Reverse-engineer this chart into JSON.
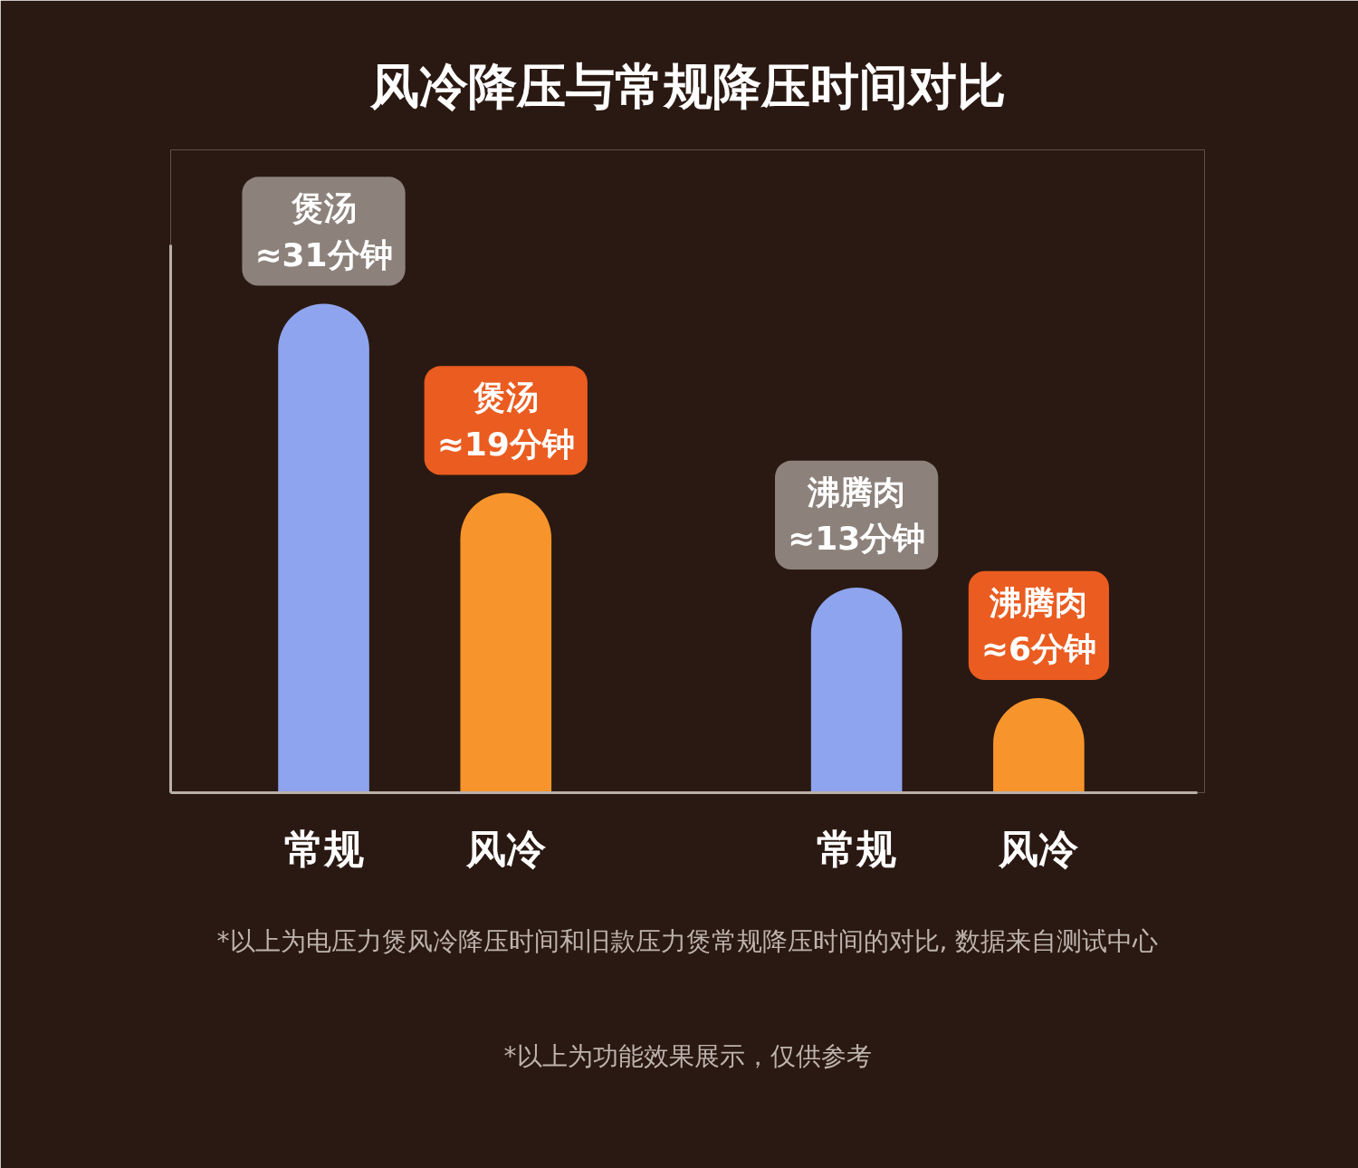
{
  "chart_data": {
    "type": "bar",
    "title": "风冷降压与常规降压时间对比",
    "categories": [
      "常规",
      "风冷",
      "常规",
      "风冷"
    ],
    "values": [
      31,
      19,
      13,
      6
    ],
    "colors": [
      "#8fa4ee",
      "#f7952c",
      "#8fa4ee",
      "#f7952c"
    ],
    "value_labels": [
      "煲汤\n≈31分钟",
      "煲汤\n≈19分钟",
      "沸腾肉\n≈13分钟",
      "沸腾肉\n≈6分钟"
    ],
    "annotations": [
      "*以上为电压力煲风冷降压时间和旧款压力煲常规降压时间的对比, 数据来自测试中心",
      "*以上为功能效果展示，仅供参考"
    ]
  }
}
